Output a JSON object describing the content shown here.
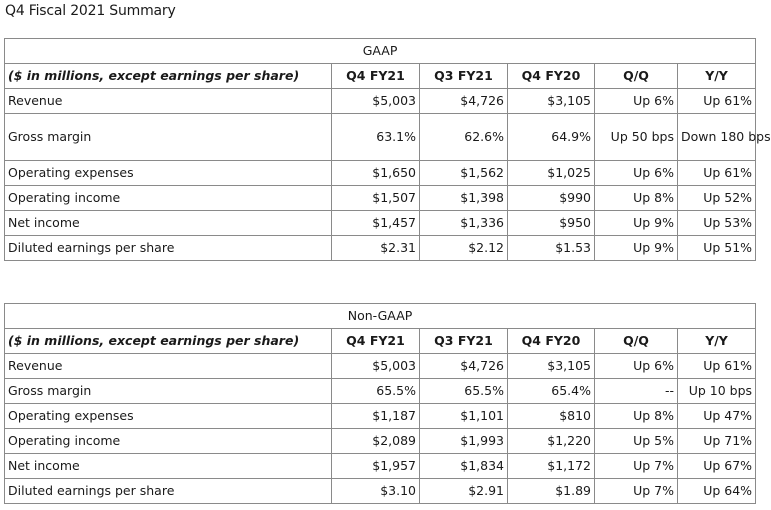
{
  "title": "Q4 Fiscal 2021 Summary",
  "tables": [
    {
      "section": "GAAP",
      "header": [
        "($ in millions, except earnings per share)",
        "Q4 FY21",
        "Q3 FY21",
        "Q4 FY20",
        "Q/Q",
        "Y/Y"
      ],
      "rows": [
        [
          "Revenue",
          "$5,003",
          "$4,726",
          "$3,105",
          "Up 6%",
          "Up 61%"
        ],
        [
          "Gross margin",
          "63.1%",
          "62.6%",
          "64.9%",
          "Up 50 bps",
          "Down 180 bps"
        ],
        [
          "Operating expenses",
          "$1,650",
          "$1,562",
          "$1,025",
          "Up 6%",
          "Up 61%"
        ],
        [
          "Operating income",
          "$1,507",
          "$1,398",
          "$990",
          "Up 8%",
          "Up 52%"
        ],
        [
          "Net income",
          "$1,457",
          "$1,336",
          "$950",
          "Up 9%",
          "Up 53%"
        ],
        [
          "Diluted earnings per share",
          "$2.31",
          "$2.12",
          "$1.53",
          "Up 9%",
          "Up 51%"
        ]
      ]
    },
    {
      "section": "Non-GAAP",
      "header": [
        "($ in millions, except earnings per share)",
        "Q4 FY21",
        "Q3 FY21",
        "Q4 FY20",
        "Q/Q",
        "Y/Y"
      ],
      "rows": [
        [
          "Revenue",
          "$5,003",
          "$4,726",
          "$3,105",
          "Up 6%",
          "Up 61%"
        ],
        [
          "Gross margin",
          "65.5%",
          "65.5%",
          "65.4%",
          "--",
          "Up 10 bps"
        ],
        [
          "Operating expenses",
          "$1,187",
          "$1,101",
          "$810",
          "Up 8%",
          "Up 47%"
        ],
        [
          "Operating income",
          "$2,089",
          "$1,993",
          "$1,220",
          "Up 5%",
          "Up 71%"
        ],
        [
          "Net income",
          "$1,957",
          "$1,834",
          "$1,172",
          "Up 7%",
          "Up 67%"
        ],
        [
          "Diluted earnings per share",
          "$3.10",
          "$2.91",
          "$1.89",
          "Up 7%",
          "Up 64%"
        ]
      ]
    }
  ]
}
